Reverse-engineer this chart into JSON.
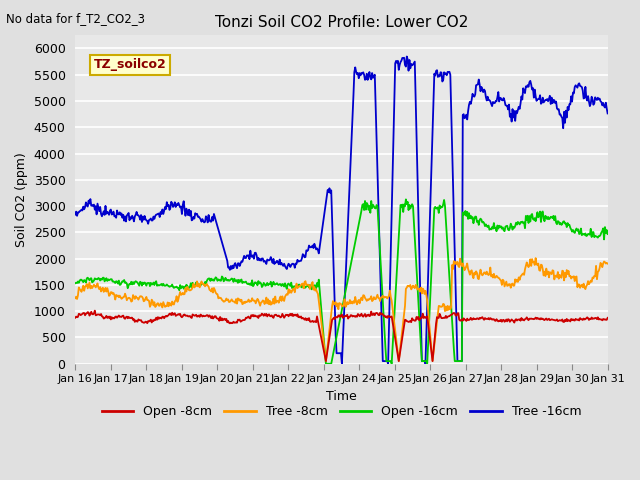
{
  "title": "Tonzi Soil CO2 Profile: Lower CO2",
  "no_data_label": "No data for f_T2_CO2_3",
  "xlabel": "Time",
  "ylabel": "Soil CO2 (ppm)",
  "ylim": [
    0,
    6250
  ],
  "yticks": [
    0,
    500,
    1000,
    1500,
    2000,
    2500,
    3000,
    3500,
    4000,
    4500,
    5000,
    5500,
    6000
  ],
  "bg_color": "#e0e0e0",
  "plot_bg_color": "#e8e8e8",
  "legend_label": "TZ_soilco2",
  "legend_box_color": "#ffffcc",
  "legend_box_edge": "#ccaa00",
  "series_colors": {
    "open_8cm": "#cc0000",
    "tree_8cm": "#ff9900",
    "open_16cm": "#00cc00",
    "tree_16cm": "#0000cc"
  },
  "series_labels": [
    "Open -8cm",
    "Tree -8cm",
    "Open -16cm",
    "Tree -16cm"
  ],
  "x_tick_labels": [
    "Jan 16",
    "Jan 17",
    "Jan 18",
    "Jan 19",
    "Jan 20",
    "Jan 21",
    "Jan 22",
    "Jan 23",
    "Jan 24",
    "Jan 25",
    "Jan 26",
    "Jan 27",
    "Jan 28",
    "Jan 29",
    "Jan 30",
    "Jan 31"
  ],
  "n_points": 600
}
